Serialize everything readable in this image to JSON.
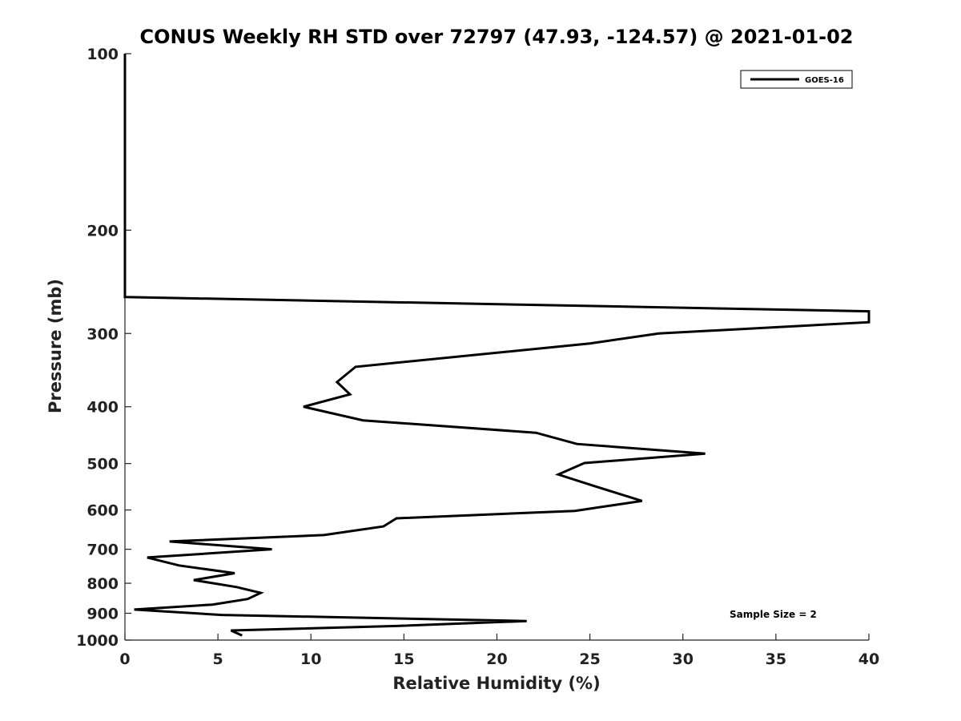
{
  "chart_data": {
    "type": "line",
    "title": "CONUS Weekly RH STD over 72797 (47.93, -124.57) @ 2021-01-02",
    "xlabel": "Relative Humidity (%)",
    "ylabel": "Pressure (mb)",
    "xlim": [
      0,
      40
    ],
    "ylim": [
      100,
      1000
    ],
    "y_scale": "log",
    "y_reversed": true,
    "grid": false,
    "legend_position": "top-right",
    "x_ticks": [
      0,
      5,
      10,
      15,
      20,
      25,
      30,
      35,
      40
    ],
    "y_ticks": [
      100,
      200,
      300,
      400,
      500,
      600,
      700,
      800,
      900,
      1000
    ],
    "annotation": "Sample Size = 2",
    "series": [
      {
        "name": "GOES-16",
        "color": "#000000",
        "points": [
          [
            0,
            100
          ],
          [
            0,
            150
          ],
          [
            0,
            200
          ],
          [
            0,
            250
          ],
          [
            0,
            260
          ],
          [
            40,
            275
          ],
          [
            40,
            287
          ],
          [
            28.7,
            300
          ],
          [
            25.0,
            312
          ],
          [
            12.4,
            342
          ],
          [
            11.4,
            363
          ],
          [
            12.1,
            381
          ],
          [
            9.6,
            400
          ],
          [
            12.8,
            422
          ],
          [
            22.1,
            443
          ],
          [
            24.3,
            463
          ],
          [
            31.2,
            481
          ],
          [
            24.7,
            499
          ],
          [
            23.3,
            522
          ],
          [
            25.3,
            547
          ],
          [
            27.8,
            579
          ],
          [
            24.2,
            602
          ],
          [
            14.6,
            620
          ],
          [
            13.9,
            640
          ],
          [
            10.7,
            662
          ],
          [
            2.4,
            679
          ],
          [
            7.9,
            700
          ],
          [
            1.2,
            723
          ],
          [
            2.9,
            746
          ],
          [
            5.9,
            769
          ],
          [
            3.7,
            790
          ],
          [
            6.0,
            812
          ],
          [
            7.3,
            831
          ],
          [
            6.6,
            851
          ],
          [
            4.7,
            870
          ],
          [
            0.5,
            887
          ],
          [
            5.2,
            906
          ],
          [
            21.6,
            928
          ],
          [
            14.6,
            946
          ],
          [
            5.7,
            963
          ],
          [
            6.3,
            982
          ]
        ]
      }
    ]
  }
}
